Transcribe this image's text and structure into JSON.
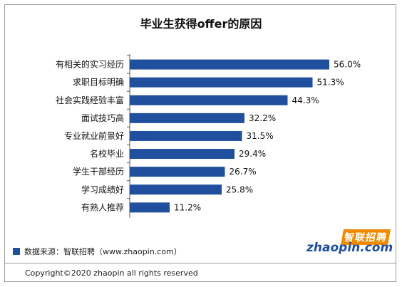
{
  "chart_data": {
    "type": "bar",
    "orientation": "horizontal",
    "title": "毕业生获得offer的原因",
    "categories": [
      "有相关的实习经历",
      "求职目标明确",
      "社会实践经验丰富",
      "面试技巧高",
      "专业就业前景好",
      "名校毕业",
      "学生干部经历",
      "学习成绩好",
      "有熟人推荐"
    ],
    "values": [
      56.0,
      51.3,
      44.3,
      32.2,
      31.5,
      29.4,
      26.7,
      25.8,
      11.2
    ],
    "value_labels": [
      "56.0%",
      "51.3%",
      "44.3%",
      "32.2%",
      "31.5%",
      "29.4%",
      "26.7%",
      "25.8%",
      "11.2%"
    ],
    "xlim": [
      0,
      60
    ],
    "bar_color": "#1f4f9d",
    "grid": false
  },
  "footer": {
    "source": "数据来源：智联招聘（www.zhaopin.com）",
    "copyright": "Copyright©2020 zhaopin all rights reserved"
  },
  "logo": {
    "cn_text": "智联招聘",
    "en_text": "zhaopin.com",
    "accent_color": "#f08a00",
    "brand_color": "#1f4f9d"
  }
}
